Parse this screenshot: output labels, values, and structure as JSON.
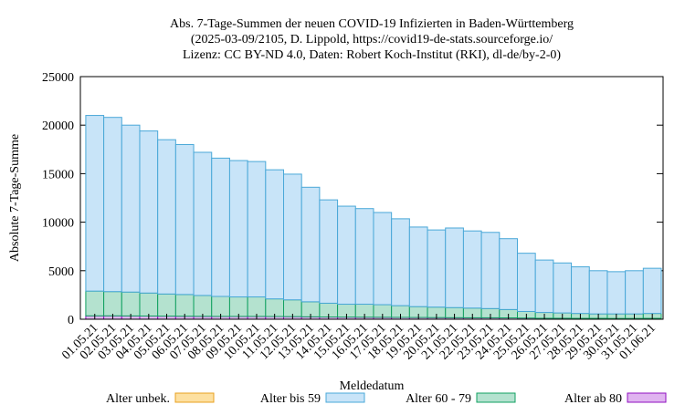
{
  "chart_data": {
    "type": "stacked-bar",
    "title": "Abs. 7-Tage-Summen der neuen COVID-19 Infizierten in Baden-Württemberg",
    "subtitle": [
      "(2025-03-09/2105, D. Lippold, https://covid19-de-stats.sourceforge.io/",
      "Lizenz: CC BY-ND 4.0, Daten: Robert Koch-Institut (RKI), dl-de/by-2-0)"
    ],
    "x_label": "Meldedatum",
    "y_label": "Absolute 7-Tage-Summe",
    "categories": [
      "01.05.21",
      "02.05.21",
      "03.05.21",
      "04.05.21",
      "05.05.21",
      "06.05.21",
      "07.05.21",
      "08.05.21",
      "09.05.21",
      "10.05.21",
      "11.05.21",
      "12.05.21",
      "13.05.21",
      "14.05.21",
      "15.05.21",
      "16.05.21",
      "17.05.21",
      "18.05.21",
      "19.05.21",
      "20.05.21",
      "21.05.21",
      "22.05.21",
      "23.05.21",
      "24.05.21",
      "25.05.21",
      "26.05.21",
      "27.05.21",
      "28.05.21",
      "29.05.21",
      "30.05.21",
      "31.05.21",
      "01.06.21"
    ],
    "series": [
      {
        "name": "Alter ab 80",
        "color": "#e0b4f0",
        "stroke": "#9010c0",
        "values": [
          350,
          350,
          340,
          330,
          320,
          310,
          300,
          290,
          290,
          290,
          280,
          270,
          250,
          230,
          220,
          210,
          200,
          190,
          180,
          170,
          160,
          150,
          150,
          140,
          120,
          100,
          100,
          90,
          90,
          80,
          80,
          90
        ]
      },
      {
        "name": "Alter 60 - 79",
        "color": "#b4e2cf",
        "stroke": "#10a060",
        "values": [
          2550,
          2500,
          2460,
          2370,
          2280,
          2240,
          2150,
          2060,
          2010,
          2010,
          1820,
          1730,
          1550,
          1420,
          1330,
          1340,
          1300,
          1210,
          1120,
          1080,
          1040,
          1000,
          950,
          860,
          680,
          600,
          550,
          510,
          460,
          470,
          470,
          510
        ]
      },
      {
        "name": "Alter bis 59",
        "color": "#c8e4f8",
        "stroke": "#4aa8d8",
        "values": [
          18100,
          17950,
          17200,
          16700,
          15900,
          15450,
          14750,
          14250,
          14050,
          13950,
          13300,
          12950,
          11800,
          10650,
          10100,
          9850,
          9500,
          8950,
          8200,
          7950,
          8200,
          7950,
          7850,
          7300,
          6000,
          5400,
          5150,
          4800,
          4450,
          4350,
          4450,
          4650
        ]
      },
      {
        "name": "Alter unbek.",
        "color": "#fde0a0",
        "stroke": "#e8a020",
        "values": [
          0,
          0,
          0,
          0,
          0,
          0,
          0,
          0,
          0,
          0,
          0,
          0,
          0,
          0,
          0,
          0,
          0,
          0,
          0,
          0,
          0,
          0,
          0,
          0,
          0,
          0,
          0,
          0,
          0,
          0,
          0,
          0
        ]
      }
    ],
    "legend_order": [
      3,
      2,
      1,
      0
    ],
    "ylim": [
      0,
      25000
    ],
    "yticks": [
      0,
      5000,
      10000,
      15000,
      20000,
      25000
    ]
  }
}
